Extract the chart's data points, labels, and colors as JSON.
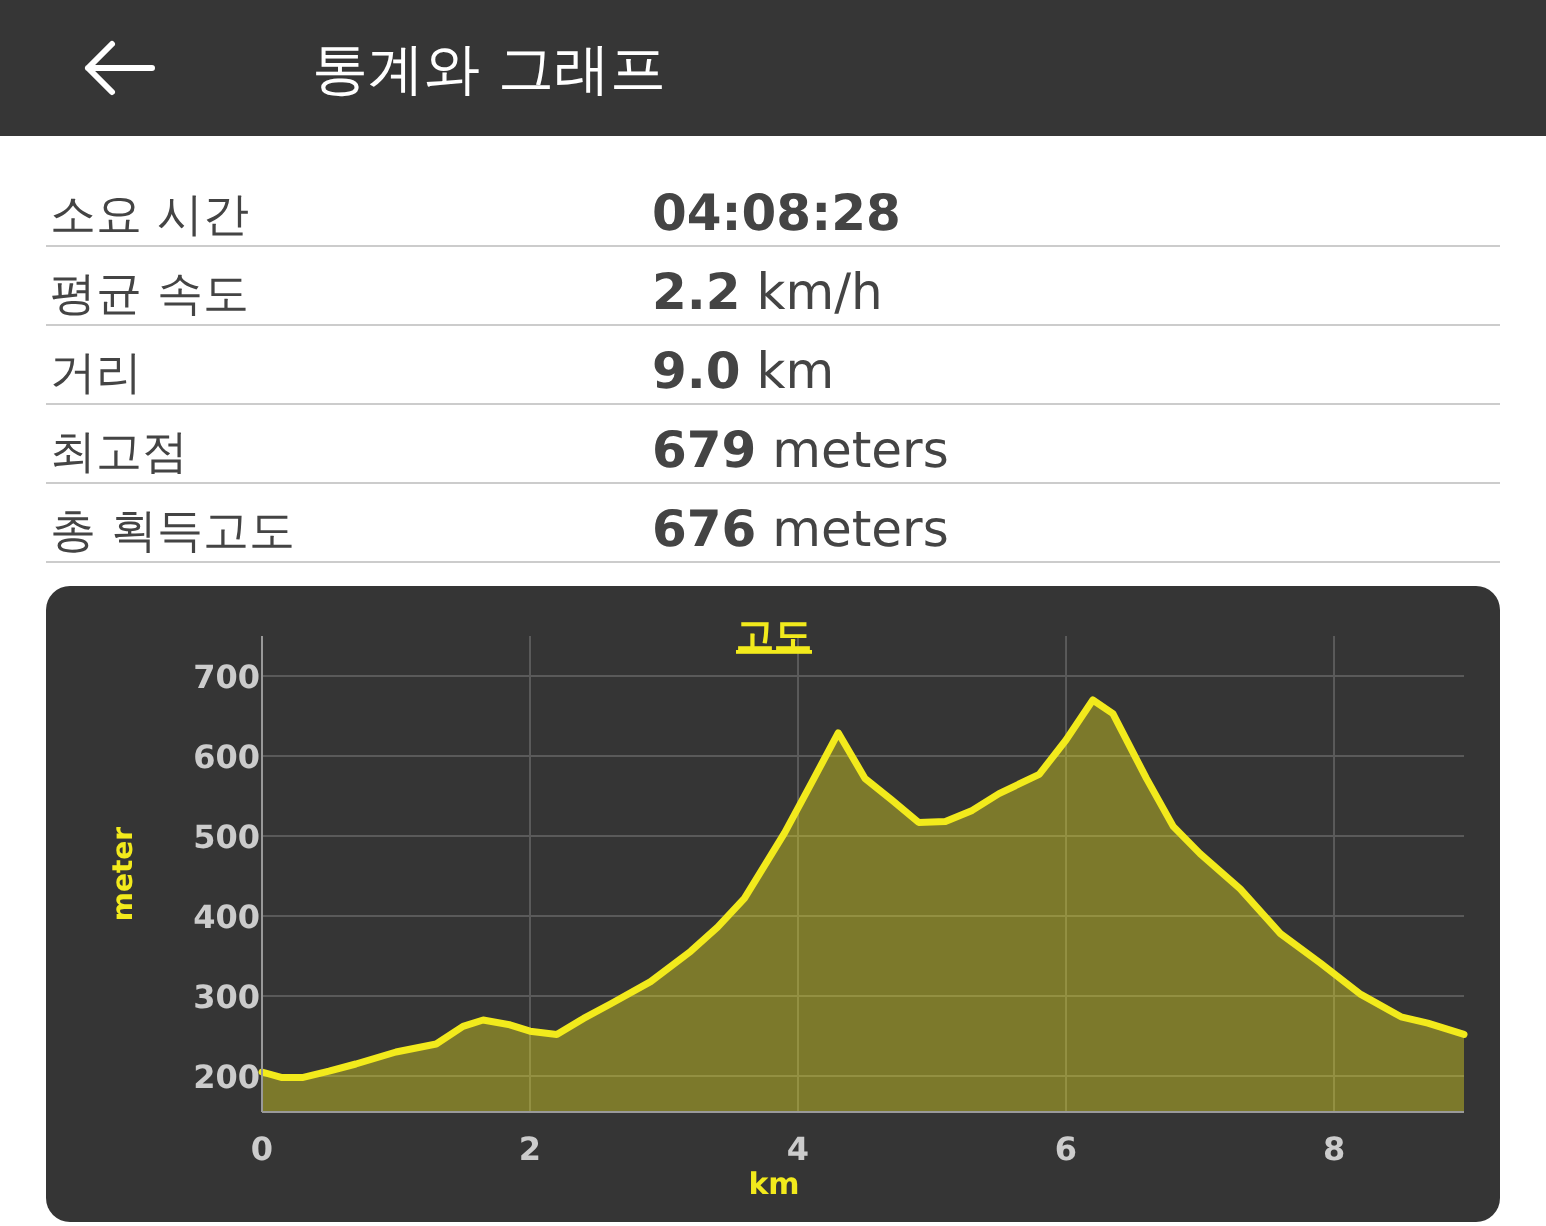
{
  "chart_data": [
    {
      "type": "other",
      "title": "통계와 그래프",
      "annotations": [
        "소요 시간",
        "04:08:28",
        "평균 속도",
        "2.2 km/h",
        "거리",
        "9.0 km",
        "최고점",
        "679 meters",
        "총 획득고도",
        "676 meters"
      ]
    },
    {
      "type": "area",
      "title": "고도",
      "xlabel": "km",
      "ylabel": "meter",
      "color": "#f2ea1c",
      "x": [
        0,
        0.15,
        0.3,
        0.5,
        0.7,
        1.0,
        1.3,
        1.5,
        1.65,
        1.85,
        2.0,
        2.2,
        2.4,
        2.6,
        2.9,
        3.2,
        3.4,
        3.6,
        3.9,
        4.1,
        4.3,
        4.5,
        4.7,
        4.9,
        5.1,
        5.3,
        5.5,
        5.8,
        6.0,
        6.2,
        6.35,
        6.6,
        6.8,
        7.0,
        7.3,
        7.6,
        7.9,
        8.2,
        8.5,
        8.7,
        8.97
      ],
      "values": [
        205,
        198,
        198,
        206,
        215,
        230,
        240,
        262,
        270,
        264,
        256,
        252,
        272,
        290,
        318,
        356,
        386,
        422,
        504,
        566,
        629,
        572,
        545,
        517,
        518,
        532,
        553,
        577,
        620,
        670,
        653,
        572,
        512,
        478,
        434,
        378,
        341,
        302,
        274,
        266,
        252
      ],
      "xlim": [
        0,
        8.97
      ],
      "ylim": [
        155,
        750
      ],
      "xticks": [
        0,
        2,
        4,
        6,
        8
      ],
      "yticks": [
        200,
        300,
        400,
        500,
        600,
        700
      ],
      "grid": true
    }
  ]
}
